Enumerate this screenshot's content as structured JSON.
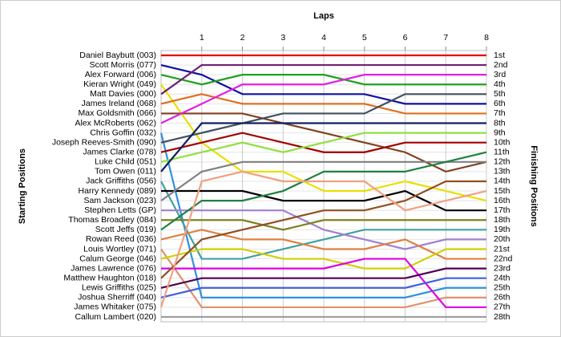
{
  "chart_data": {
    "type": "bump",
    "x_label": "Laps",
    "y_label": "Starting Positions",
    "y2_label": "Finishing Positions",
    "x": [
      0,
      1,
      2,
      3,
      4,
      5,
      6,
      7,
      8
    ],
    "xlim": [
      0,
      8
    ],
    "xticks": [
      1,
      2,
      3,
      4,
      5,
      6,
      7,
      8
    ],
    "ylim": [
      1,
      28
    ],
    "grid": true,
    "categories": [
      "Daniel Baybutt (003)",
      "Scott Morris (077)",
      "Alex Forward (006)",
      "Kieran Wright (049)",
      "Matt Davies (000)",
      "James Ireland (068)",
      "Max Goldsmith (066)",
      "Alex McRoberts (062)",
      "Chris Goffin (032)",
      "Joseph Reeves-Smith (090)",
      "James Clarke (078)",
      "Luke Child (051)",
      "Tom Owen (011)",
      "Jack Griffiths (056)",
      "Harry Kennedy (089)",
      "Sam Jackson (023)",
      "Stephen Letts (GP)",
      "Thomas Broadley (084)",
      "Scott Jeffs (019)",
      "Rowan Reed (036)",
      "Louis Wortley (071)",
      "Calum George (046)",
      "James Lawrence (076)",
      "Matthew Haughton (018)",
      "Lewis Griffiths (025)",
      "Joshua Sherriff (040)",
      "James Whitaker (075)",
      "Callum Lambert (020)"
    ],
    "y2_categories": [
      "1st",
      "2nd",
      "3rd",
      "4th",
      "5th",
      "6th",
      "7th",
      "8th",
      "9th",
      "10th",
      "11th",
      "12th",
      "13th",
      "14th",
      "15th",
      "16th",
      "17th",
      "18th",
      "19th",
      "20th",
      "21st",
      "22nd",
      "23rd",
      "24th",
      "25th",
      "26th",
      "27th",
      "28th"
    ],
    "series": [
      {
        "color": "#e00000",
        "values": [
          1,
          1,
          1,
          1,
          1,
          1,
          1,
          1,
          1
        ]
      },
      {
        "color": "#1010a0",
        "values": [
          2,
          3,
          5,
          5,
          5,
          5,
          6,
          6,
          6
        ]
      },
      {
        "color": "#20a020",
        "values": [
          3,
          4,
          3,
          3,
          3,
          4,
          4,
          4,
          4
        ]
      },
      {
        "color": "#e8e000",
        "values": [
          4,
          10,
          13,
          13,
          15,
          15,
          14,
          15,
          16
        ]
      },
      {
        "color": "#702070",
        "values": [
          5,
          2,
          2,
          2,
          2,
          2,
          2,
          2,
          2
        ]
      },
      {
        "color": "#e07020",
        "values": [
          6,
          5,
          6,
          6,
          6,
          6,
          7,
          7,
          7
        ]
      },
      {
        "color": "#804020",
        "values": [
          7,
          7,
          7,
          8,
          9,
          10,
          11,
          13,
          12
        ]
      },
      {
        "color": "#e020e0",
        "values": [
          8,
          6,
          4,
          4,
          4,
          3,
          3,
          3,
          3
        ]
      },
      {
        "color": "#3090e0",
        "values": [
          9,
          26,
          26,
          26,
          26,
          26,
          26,
          25,
          25
        ]
      },
      {
        "color": "#405060",
        "values": [
          10,
          9,
          8,
          7,
          7,
          7,
          5,
          5,
          5
        ]
      },
      {
        "color": "#a00000",
        "values": [
          11,
          10,
          9,
          10,
          11,
          11,
          10,
          10,
          10
        ]
      },
      {
        "color": "#90e040",
        "values": [
          12,
          11,
          10,
          11,
          10,
          9,
          9,
          9,
          9
        ]
      },
      {
        "color": "#102060",
        "values": [
          13,
          8,
          8,
          8,
          8,
          8,
          8,
          8,
          8
        ]
      },
      {
        "color": "#40a0a0",
        "values": [
          14,
          22,
          22,
          21,
          20,
          19,
          19,
          19,
          19
        ]
      },
      {
        "color": "#000000",
        "values": [
          15,
          15,
          15,
          16,
          16,
          16,
          15,
          17,
          17
        ]
      },
      {
        "color": "#808080",
        "values": [
          16,
          13,
          12,
          12,
          12,
          12,
          12,
          12,
          12
        ]
      },
      {
        "color": "#a080d0",
        "values": [
          17,
          17,
          17,
          17,
          19,
          20,
          21,
          20,
          20
        ]
      },
      {
        "color": "#808020",
        "values": [
          18,
          18,
          18,
          19,
          18,
          18,
          18,
          18,
          18
        ]
      },
      {
        "color": "#208040",
        "values": [
          19,
          16,
          16,
          15,
          13,
          13,
          13,
          12,
          11
        ]
      },
      {
        "color": "#e08040",
        "values": [
          20,
          19,
          20,
          20,
          21,
          21,
          20,
          22,
          22
        ]
      },
      {
        "color": "#e09070",
        "values": [
          21,
          27,
          27,
          27,
          27,
          27,
          27,
          26,
          26
        ]
      },
      {
        "color": "#d0d000",
        "values": [
          22,
          21,
          21,
          22,
          22,
          23,
          23,
          21,
          21
        ]
      },
      {
        "color": "#e000e0",
        "values": [
          23,
          23,
          23,
          23,
          23,
          22,
          22,
          27,
          27
        ]
      },
      {
        "color": "#905020",
        "values": [
          24,
          20,
          19,
          18,
          17,
          17,
          16,
          14,
          14
        ]
      },
      {
        "color": "#500050",
        "values": [
          25,
          24,
          24,
          24,
          24,
          24,
          24,
          23,
          23
        ]
      },
      {
        "color": "#4060e0",
        "values": [
          26,
          25,
          25,
          25,
          25,
          25,
          25,
          24,
          24
        ]
      },
      {
        "color": "#f0a080",
        "values": [
          27,
          14,
          13,
          14,
          14,
          14,
          17,
          16,
          15
        ]
      },
      {
        "color": "#a0a0a0",
        "values": [
          28,
          28,
          28,
          28,
          28,
          28,
          28,
          28,
          28
        ]
      }
    ]
  }
}
